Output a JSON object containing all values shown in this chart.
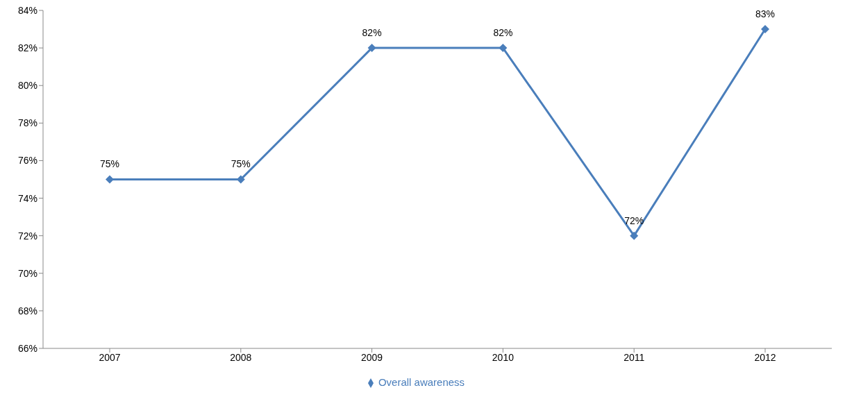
{
  "chart_data": {
    "type": "line",
    "categories": [
      "2007",
      "2008",
      "2009",
      "2010",
      "2011",
      "2012"
    ],
    "series": [
      {
        "name": "Overall awareness",
        "color": "#4a7ebb",
        "values": [
          75,
          75,
          82,
          82,
          72,
          83
        ],
        "value_labels": [
          "75%",
          "75%",
          "82%",
          "82%",
          "72%",
          "83%"
        ]
      }
    ],
    "ylim": [
      66,
      84
    ],
    "yticks": [
      {
        "value": 66,
        "label": "66%"
      },
      {
        "value": 68,
        "label": "68%"
      },
      {
        "value": 70,
        "label": "70%"
      },
      {
        "value": 72,
        "label": "72%"
      },
      {
        "value": 74,
        "label": "74%"
      },
      {
        "value": 76,
        "label": "76%"
      },
      {
        "value": 78,
        "label": "78%"
      },
      {
        "value": 80,
        "label": "80%"
      },
      {
        "value": 82,
        "label": "82%"
      },
      {
        "value": 84,
        "label": "84%"
      }
    ],
    "marker": "diamond",
    "legend": "bottom",
    "line_style": "solid"
  }
}
